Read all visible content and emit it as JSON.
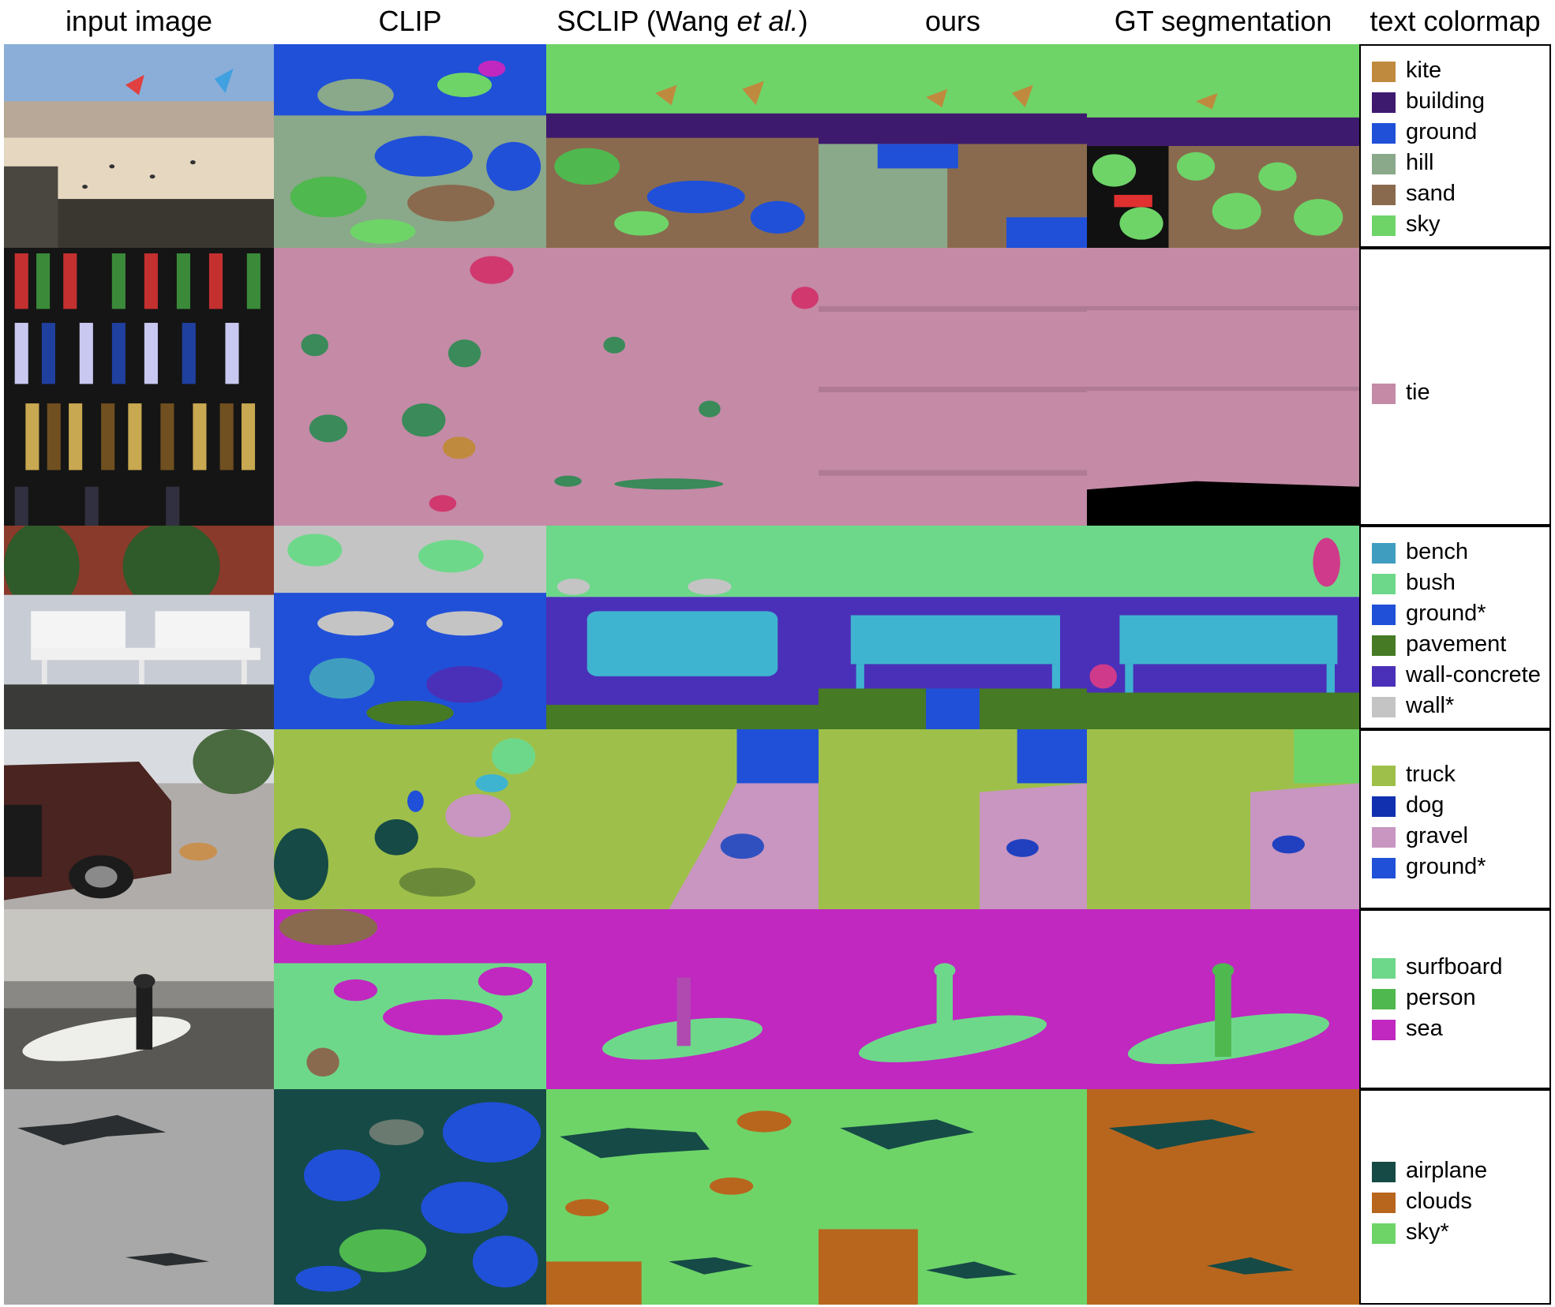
{
  "headers": {
    "input": "input image",
    "clip": "CLIP",
    "sclip_prefix": "SCLIP (Wang ",
    "sclip_italic": "et al.",
    "sclip_suffix": ")",
    "ours": "ours",
    "gt": "GT segmentation",
    "colormap": "text colormap"
  },
  "rows": [
    {
      "id": "beach-kites",
      "legend": [
        {
          "label": "kite",
          "color": "#c08a3e"
        },
        {
          "label": "building",
          "color": "#3e1a6e"
        },
        {
          "label": "ground",
          "color": "#2050d8"
        },
        {
          "label": "hill",
          "color": "#8aa88a"
        },
        {
          "label": "sand",
          "color": "#8a6a4e"
        },
        {
          "label": "sky",
          "color": "#6ed468"
        }
      ]
    },
    {
      "id": "ties",
      "legend": [
        {
          "label": "tie",
          "color": "#c48aa6"
        }
      ]
    },
    {
      "id": "bench",
      "legend": [
        {
          "label": "bench",
          "color": "#3f9ebf"
        },
        {
          "label": "bush",
          "color": "#6ed88a"
        },
        {
          "label": "ground*",
          "color": "#2050d8"
        },
        {
          "label": "pavement",
          "color": "#467a24"
        },
        {
          "label": "wall-concrete",
          "color": "#4a30b8"
        },
        {
          "label": "wall*",
          "color": "#c4c4c4"
        }
      ]
    },
    {
      "id": "truck-dog",
      "legend": [
        {
          "label": "truck",
          "color": "#9ec04a"
        },
        {
          "label": "dog",
          "color": "#1030b0"
        },
        {
          "label": "gravel",
          "color": "#c896c0"
        },
        {
          "label": "ground*",
          "color": "#2050d8"
        }
      ]
    },
    {
      "id": "surfer",
      "legend": [
        {
          "label": "surfboard",
          "color": "#6ed88a"
        },
        {
          "label": "person",
          "color": "#4fb84f"
        },
        {
          "label": "sea",
          "color": "#c028c0"
        }
      ]
    },
    {
      "id": "airplanes",
      "legend": [
        {
          "label": "airplane",
          "color": "#164a46"
        },
        {
          "label": "clouds",
          "color": "#b8661e"
        },
        {
          "label": "sky*",
          "color": "#6ed468"
        }
      ]
    }
  ]
}
